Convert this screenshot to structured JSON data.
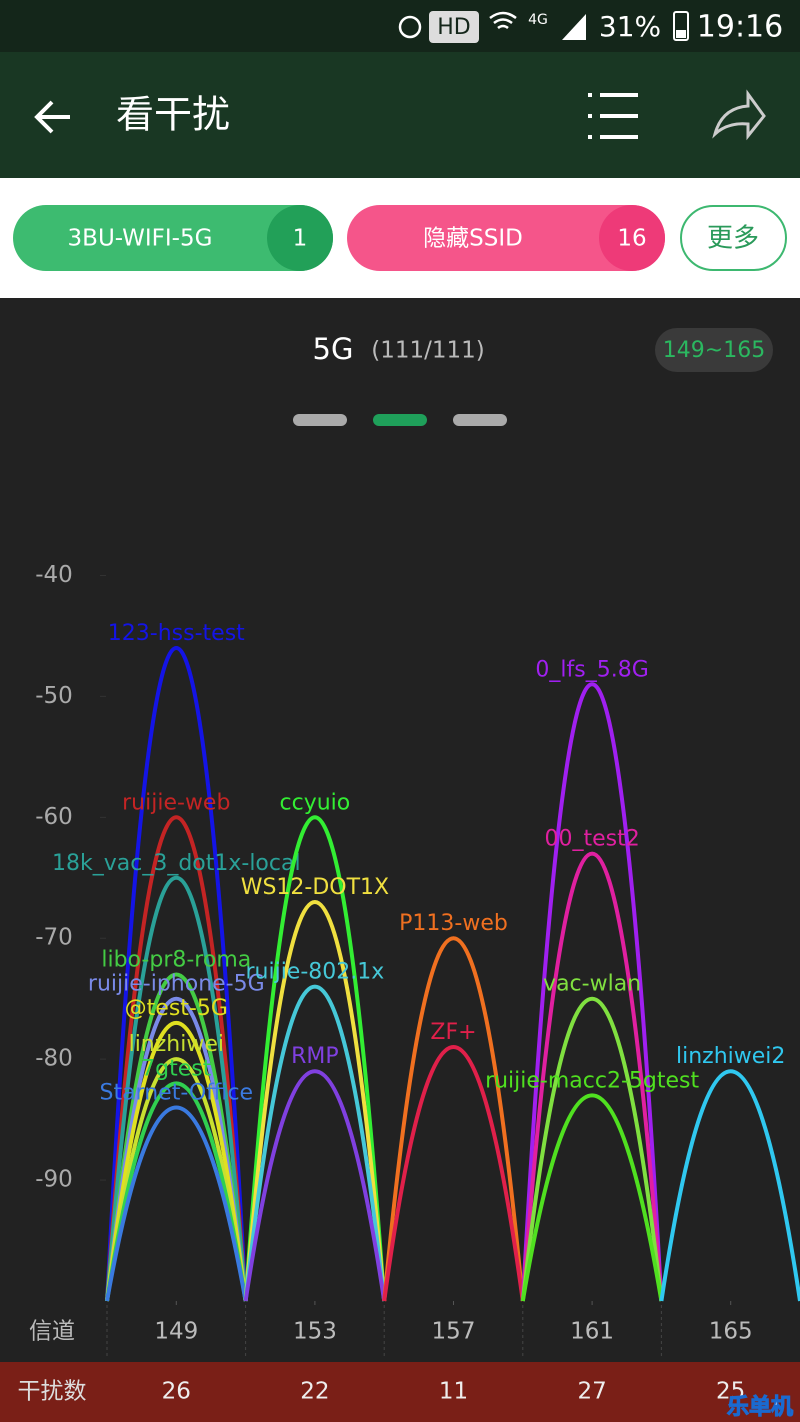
{
  "status_bar": {
    "hd": "HD",
    "network": "4G",
    "battery": "31%",
    "time": "19:16"
  },
  "app_bar": {
    "title": "看干扰"
  },
  "filters": [
    {
      "label": "3BU-WIFI-5G",
      "count": 1
    },
    {
      "label": "隐藏SSID",
      "count": 16
    },
    {
      "label": "更多"
    }
  ],
  "band": {
    "name": "5G",
    "count": "(111/111)",
    "range": "149~165"
  },
  "chart_data": {
    "type": "arc",
    "ylim": [
      -100,
      -35
    ],
    "yticks": [
      -40,
      -50,
      -60,
      -70,
      -80,
      -90
    ],
    "xlim": [
      147,
      167
    ],
    "xticks": [
      149,
      153,
      157,
      161,
      165
    ],
    "channel_label": "信道",
    "count_label": "干扰数",
    "interference": [
      26,
      22,
      11,
      27,
      25
    ],
    "series": [
      {
        "name": "123-hss-test",
        "channel": 149,
        "signal": -46,
        "color": "#1414e6"
      },
      {
        "name": "ruijie-web",
        "channel": 149,
        "signal": -60,
        "color": "#c42424"
      },
      {
        "name": "18k_vac_3_dot1x-local",
        "channel": 149,
        "signal": -65,
        "color": "#2aa198"
      },
      {
        "name": "libo-pr8-roma",
        "channel": 149,
        "signal": -73,
        "color": "#44cc44"
      },
      {
        "name": "ruijie-iphone-5G",
        "channel": 149,
        "signal": -75,
        "color": "#7a8ae8"
      },
      {
        "name": "@test-5G",
        "channel": 149,
        "signal": -77,
        "color": "#e0e020"
      },
      {
        "name": "linzhiwei",
        "channel": 149,
        "signal": -80,
        "color": "#c8e030"
      },
      {
        "name": "7gtest",
        "channel": 149,
        "signal": -82,
        "color": "#30d050"
      },
      {
        "name": "Starnet-Office",
        "channel": 149,
        "signal": -84,
        "color": "#3a7ae0"
      },
      {
        "name": "ccyuio",
        "channel": 153,
        "signal": -60,
        "color": "#33ee33"
      },
      {
        "name": "WS12-DOT1X",
        "channel": 153,
        "signal": -67,
        "color": "#f0e040"
      },
      {
        "name": "ruijie-802.1x",
        "channel": 153,
        "signal": -74,
        "color": "#46c8d8"
      },
      {
        "name": "RMP",
        "channel": 153,
        "signal": -81,
        "color": "#8040e0"
      },
      {
        "name": "P113-web",
        "channel": 157,
        "signal": -70,
        "color": "#f07020"
      },
      {
        "name": "ZF+",
        "channel": 157,
        "signal": -79,
        "color": "#e0204a"
      },
      {
        "name": "0_lfs_5.8G",
        "channel": 161,
        "signal": -49,
        "color": "#a020f0"
      },
      {
        "name": "00_test2",
        "channel": 161,
        "signal": -63,
        "color": "#e020a0"
      },
      {
        "name": "vac-wlan",
        "channel": 161,
        "signal": -75,
        "color": "#80e040"
      },
      {
        "name": "ruijie-macc2-5gtest",
        "channel": 161,
        "signal": -83,
        "color": "#50e020"
      },
      {
        "name": "linzhiwei2",
        "channel": 165,
        "signal": -81,
        "color": "#30c8f0"
      }
    ]
  },
  "watermark": "乐单机"
}
